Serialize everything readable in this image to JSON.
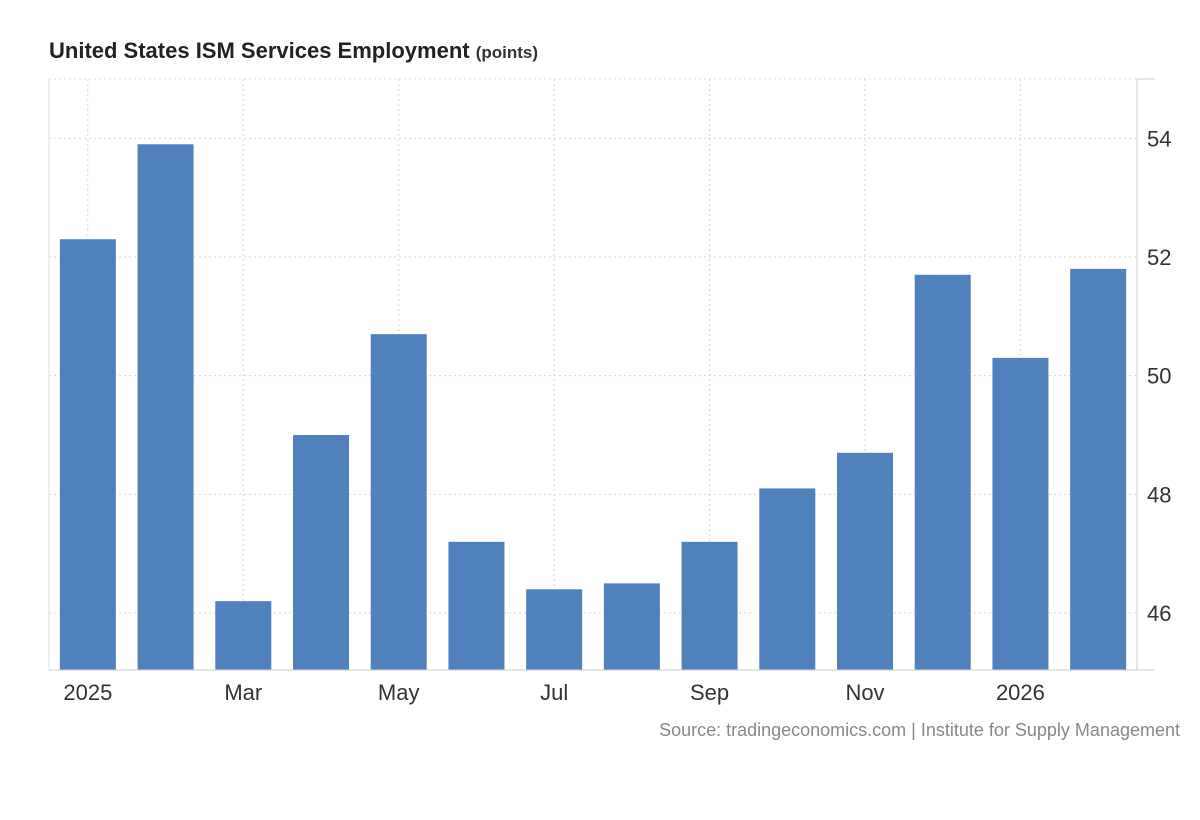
{
  "chart_data": {
    "type": "bar",
    "title": "United States ISM Services Employment",
    "unit": "(points)",
    "categories": [
      "Jan 2025",
      "Feb 2025",
      "Mar 2025",
      "Apr 2025",
      "May 2025",
      "Jun 2025",
      "Jul 2025",
      "Aug 2025",
      "Sep 2025",
      "Oct 2025",
      "Nov 2025",
      "Dec 2025",
      "Jan 2026",
      "Feb 2026"
    ],
    "values": [
      52.3,
      53.9,
      46.2,
      49.0,
      50.7,
      47.2,
      46.4,
      46.5,
      47.2,
      48.1,
      48.7,
      51.7,
      50.3,
      51.8
    ],
    "x_tick_labels": [
      {
        "label": "2025",
        "index": 0
      },
      {
        "label": "Mar",
        "index": 2
      },
      {
        "label": "May",
        "index": 4
      },
      {
        "label": "Jul",
        "index": 6
      },
      {
        "label": "Sep",
        "index": 8
      },
      {
        "label": "Nov",
        "index": 10
      },
      {
        "label": "2026",
        "index": 12
      }
    ],
    "y_ticks": [
      46,
      48,
      50,
      52,
      54
    ],
    "ylim": [
      45.04,
      55.0
    ],
    "xlabel": "",
    "ylabel": "",
    "grid": true,
    "y_axis_position": "right",
    "bar_color": "#4f81bd"
  },
  "source": "Source: tradingeconomics.com | Institute for Supply Management"
}
